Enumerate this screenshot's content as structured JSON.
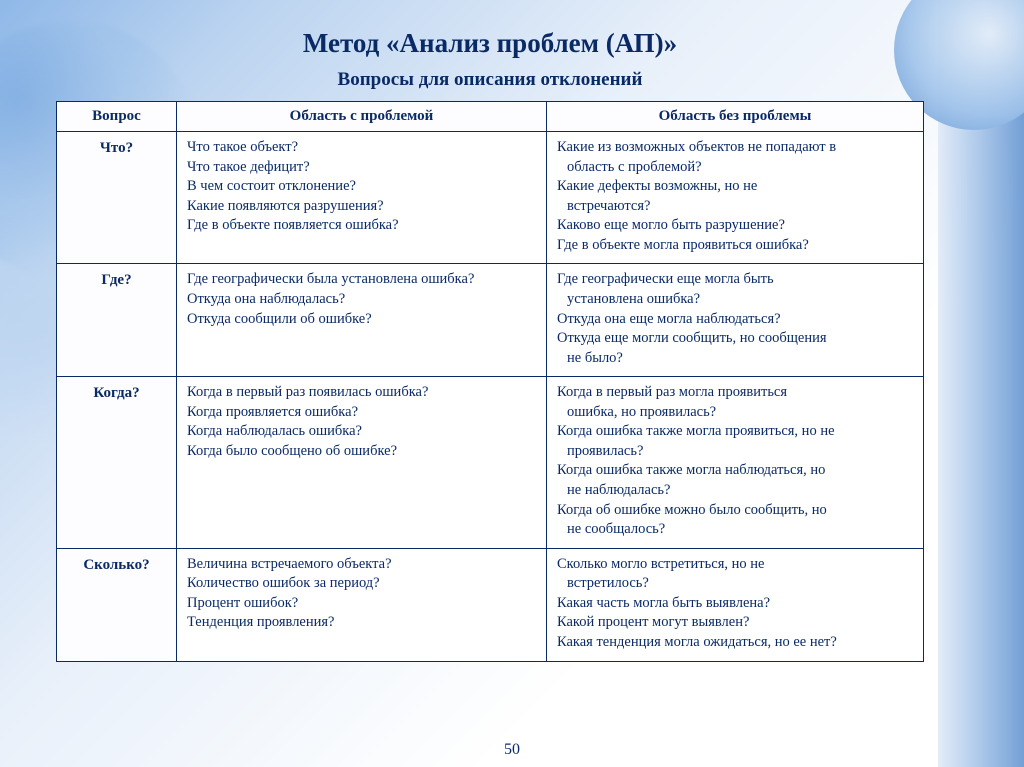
{
  "title": "Метод «Анализ проблем (АП)»",
  "subtitle": "Вопросы для описания отклонений",
  "page_number": "50",
  "header": {
    "col1": "Вопрос",
    "col2": "Область с проблемой",
    "col3": "Область без проблемы"
  },
  "rows": [
    {
      "q": "Что?",
      "a": [
        "Что такое объект?",
        "Что такое дефицит?",
        "В чем состоит отклонение?",
        "Какие появляются разрушения?",
        "Где в объекте появляется ошибка?"
      ],
      "b": [
        "Какие из возможных объектов не попадают в",
        " область с проблемой?",
        "Какие дефекты возможны, но не",
        " встречаются?",
        "Каково еще могло быть разрушение?",
        "Где в объекте могла проявиться ошибка?"
      ]
    },
    {
      "q": "Где?",
      "a": [
        "Где географически была установлена ошибка?",
        "Откуда она наблюдалась?",
        "Откуда сообщили об ошибке?"
      ],
      "b": [
        "Где географически еще могла быть",
        " установлена ошибка?",
        "Откуда она еще могла наблюдаться?",
        "Откуда еще могли сообщить, но сообщения",
        " не было?"
      ]
    },
    {
      "q": "Когда?",
      "a": [
        "Когда в первый раз появилась ошибка?",
        "Когда проявляется ошибка?",
        "Когда наблюдалась ошибка?",
        "Когда было сообщено об ошибке?"
      ],
      "b": [
        "Когда в первый раз могла проявиться",
        " ошибка, но проявилась?",
        "Когда ошибка также могла проявиться, но не",
        " проявилась?",
        "Когда ошибка также могла наблюдаться, но",
        " не наблюдалась?",
        "Когда об ошибке можно было сообщить, но",
        " не сообщалось?"
      ]
    },
    {
      "q": "Сколько?",
      "a": [
        "Величина встречаемого объекта?",
        "Количество ошибок за период?",
        "Процент ошибок?",
        "Тенденция проявления?"
      ],
      "b": [
        "Сколько могло встретиться, но не",
        " встретилось?",
        "Какая часть могла быть  выявлена?",
        "Какой процент могут выявлен?",
        "Какая тенденция могла ожидаться, но ее нет?"
      ]
    }
  ],
  "colors": {
    "title": "#0a2a66",
    "border": "#0a2a66",
    "text": "#0a2a66",
    "bg_light": "#ffffff"
  }
}
